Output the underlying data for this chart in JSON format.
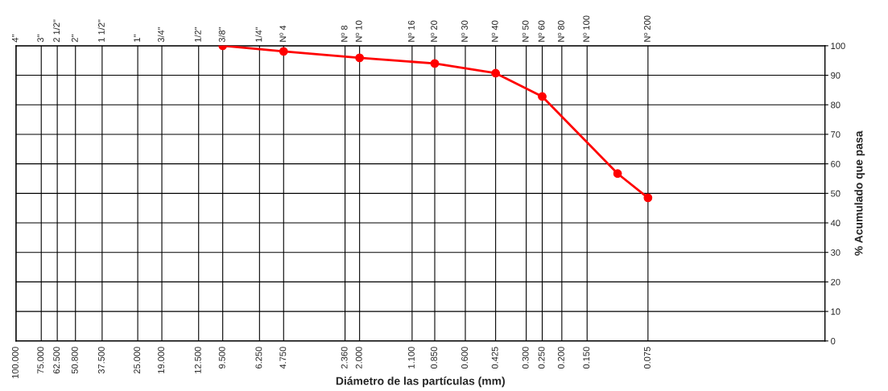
{
  "chart_data": {
    "type": "line",
    "xlabel": "Diámetro de las partículas (mm)",
    "ylabel": "% Acumulado que pasa",
    "log": "x",
    "grid": true,
    "marker": "circle",
    "line_style": "solid",
    "x": [
      9.5,
      4.75,
      2.0,
      0.85,
      0.425,
      0.25,
      0.106,
      0.075
    ],
    "series": [
      {
        "color": "#ff0000",
        "values": [
          100,
          98.1,
          95.9,
          94.0,
          90.7,
          82.8,
          56.7,
          48.5
        ]
      }
    ],
    "xlim": [
      100,
      0.01
    ],
    "ylim": [
      0,
      100
    ],
    "yticks": [
      0,
      10,
      20,
      30,
      40,
      50,
      60,
      70,
      80,
      90,
      100
    ],
    "xticks": [
      {
        "value": 100,
        "label": "100.000"
      },
      {
        "value": 75,
        "label": "75.000"
      },
      {
        "value": 62.5,
        "label": "62.500"
      },
      {
        "value": 50.8,
        "label": "50.800"
      },
      {
        "value": 37.5,
        "label": "37.500"
      },
      {
        "value": 25,
        "label": "25.000"
      },
      {
        "value": 19,
        "label": "19.000"
      },
      {
        "value": 12.5,
        "label": "12.500"
      },
      {
        "value": 9.5,
        "label": "9.500"
      },
      {
        "value": 6.25,
        "label": "6.250"
      },
      {
        "value": 4.75,
        "label": "4.750"
      },
      {
        "value": 2.36,
        "label": "2.360"
      },
      {
        "value": 2.0,
        "label": "2.000"
      },
      {
        "value": 1.1,
        "label": "1.100"
      },
      {
        "value": 0.85,
        "label": "0.850"
      },
      {
        "value": 0.6,
        "label": "0.600"
      },
      {
        "value": 0.425,
        "label": "0.425"
      },
      {
        "value": 0.3,
        "label": "0.300"
      },
      {
        "value": 0.25,
        "label": "0.250"
      },
      {
        "value": 0.2,
        "label": "0.200"
      },
      {
        "value": 0.15,
        "label": "0.150"
      },
      {
        "value": 0.075,
        "label": "0.075"
      }
    ],
    "annotations": [
      "4\"",
      "3\"",
      "2 1/2\"",
      "2\"",
      "1 1/2\"",
      "1\"",
      "3/4\"",
      "1/2\"",
      "3/8\"",
      "1/4\"",
      "Nº 4",
      "Nº 8",
      "Nº 10",
      "Nº 16",
      "Nº 20",
      "Nº 30",
      "Nº 40",
      "Nº 50",
      "Nº 60",
      "Nº 80",
      "Nº 100",
      "Nº 200"
    ]
  }
}
